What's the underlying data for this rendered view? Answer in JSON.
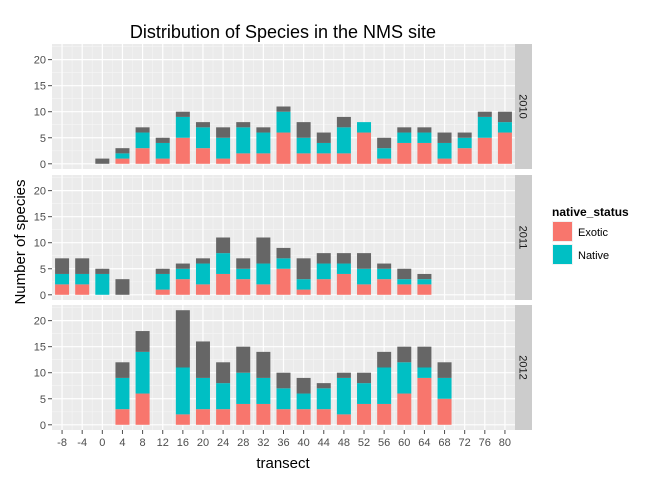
{
  "chart_data": {
    "type": "bar",
    "stacked": true,
    "faceted_by": "year",
    "title": "Distribution of Species in the NMS site",
    "xlabel": "transect",
    "ylabel": "Number of species",
    "ylim": [
      -1,
      23
    ],
    "yticks": [
      0,
      5,
      10,
      15,
      20
    ],
    "xlim": [
      -10,
      82
    ],
    "xticks": [
      -8,
      -4,
      0,
      4,
      8,
      12,
      16,
      20,
      24,
      28,
      32,
      36,
      40,
      44,
      48,
      52,
      56,
      60,
      64,
      68,
      72,
      76,
      80
    ],
    "xtick_labels": [
      "-8",
      "-4",
      "0",
      "4",
      "8",
      "12",
      "16",
      "20",
      "24",
      "28",
      "32",
      "36",
      "40",
      "44",
      "48",
      "52",
      "56",
      "60",
      "64",
      "68",
      "72",
      "76",
      "80"
    ],
    "legend": {
      "title": "native_status",
      "position": "right",
      "entries": [
        {
          "label": "Exotic",
          "color": "#F8766D"
        },
        {
          "label": "Native",
          "color": "#00BFC4"
        }
      ]
    },
    "other_color": "#666666",
    "panel_bg": "#EBEBEB",
    "strip_bg": "#CCCCCC",
    "series_order_bottom_to_top": [
      "Exotic",
      "Native",
      "unlabeled (grey, no legend entry)"
    ],
    "facets": [
      {
        "label": "2010",
        "bars": [
          {
            "x": 0,
            "exotic": 0,
            "native": 0,
            "total": 1
          },
          {
            "x": 4,
            "exotic": 1,
            "native": 1,
            "total": 3
          },
          {
            "x": 8,
            "exotic": 3,
            "native": 3,
            "total": 7
          },
          {
            "x": 12,
            "exotic": 1,
            "native": 3,
            "total": 5
          },
          {
            "x": 16,
            "exotic": 5,
            "native": 4,
            "total": 10
          },
          {
            "x": 20,
            "exotic": 3,
            "native": 4,
            "total": 8
          },
          {
            "x": 24,
            "exotic": 1,
            "native": 4,
            "total": 7
          },
          {
            "x": 28,
            "exotic": 2,
            "native": 5,
            "total": 8
          },
          {
            "x": 32,
            "exotic": 2,
            "native": 4,
            "total": 7
          },
          {
            "x": 36,
            "exotic": 6,
            "native": 4,
            "total": 11
          },
          {
            "x": 40,
            "exotic": 2,
            "native": 3,
            "total": 8
          },
          {
            "x": 44,
            "exotic": 2,
            "native": 2,
            "total": 6
          },
          {
            "x": 48,
            "exotic": 2,
            "native": 5,
            "total": 9
          },
          {
            "x": 52,
            "exotic": 6,
            "native": 2,
            "total": 8
          },
          {
            "x": 56,
            "exotic": 1,
            "native": 2,
            "total": 5
          },
          {
            "x": 60,
            "exotic": 4,
            "native": 2,
            "total": 7
          },
          {
            "x": 64,
            "exotic": 4,
            "native": 2,
            "total": 7
          },
          {
            "x": 68,
            "exotic": 1,
            "native": 3,
            "total": 6
          },
          {
            "x": 72,
            "exotic": 3,
            "native": 2,
            "total": 6
          },
          {
            "x": 76,
            "exotic": 5,
            "native": 4,
            "total": 10
          },
          {
            "x": 80,
            "exotic": 6,
            "native": 2,
            "total": 10
          }
        ]
      },
      {
        "label": "2011",
        "bars": [
          {
            "x": -8,
            "exotic": 2,
            "native": 2,
            "total": 7
          },
          {
            "x": -4,
            "exotic": 2,
            "native": 2,
            "total": 7
          },
          {
            "x": 0,
            "exotic": 0,
            "native": 4,
            "total": 5
          },
          {
            "x": 4,
            "exotic": 0,
            "native": 0,
            "total": 3
          },
          {
            "x": 12,
            "exotic": 1,
            "native": 3,
            "total": 5
          },
          {
            "x": 16,
            "exotic": 3,
            "native": 2,
            "total": 6
          },
          {
            "x": 20,
            "exotic": 2,
            "native": 4,
            "total": 7
          },
          {
            "x": 24,
            "exotic": 4,
            "native": 4,
            "total": 11
          },
          {
            "x": 28,
            "exotic": 3,
            "native": 2,
            "total": 7
          },
          {
            "x": 32,
            "exotic": 2,
            "native": 4,
            "total": 11
          },
          {
            "x": 36,
            "exotic": 5,
            "native": 2,
            "total": 9
          },
          {
            "x": 40,
            "exotic": 1,
            "native": 2,
            "total": 7
          },
          {
            "x": 44,
            "exotic": 3,
            "native": 3,
            "total": 8
          },
          {
            "x": 48,
            "exotic": 4,
            "native": 2,
            "total": 8
          },
          {
            "x": 52,
            "exotic": 2,
            "native": 3,
            "total": 8
          },
          {
            "x": 56,
            "exotic": 3,
            "native": 2,
            "total": 6
          },
          {
            "x": 60,
            "exotic": 2,
            "native": 1,
            "total": 5
          },
          {
            "x": 64,
            "exotic": 2,
            "native": 1,
            "total": 4
          }
        ]
      },
      {
        "label": "2012",
        "bars": [
          {
            "x": 4,
            "exotic": 3,
            "native": 6,
            "total": 12
          },
          {
            "x": 8,
            "exotic": 6,
            "native": 8,
            "total": 18
          },
          {
            "x": 16,
            "exotic": 2,
            "native": 9,
            "total": 22
          },
          {
            "x": 20,
            "exotic": 3,
            "native": 6,
            "total": 16
          },
          {
            "x": 24,
            "exotic": 3,
            "native": 5,
            "total": 12
          },
          {
            "x": 28,
            "exotic": 4,
            "native": 6,
            "total": 15
          },
          {
            "x": 32,
            "exotic": 4,
            "native": 5,
            "total": 14
          },
          {
            "x": 36,
            "exotic": 3,
            "native": 4,
            "total": 10
          },
          {
            "x": 40,
            "exotic": 3,
            "native": 3,
            "total": 9
          },
          {
            "x": 44,
            "exotic": 3,
            "native": 4,
            "total": 8
          },
          {
            "x": 48,
            "exotic": 2,
            "native": 7,
            "total": 10
          },
          {
            "x": 52,
            "exotic": 4,
            "native": 4,
            "total": 10
          },
          {
            "x": 56,
            "exotic": 4,
            "native": 7,
            "total": 14
          },
          {
            "x": 60,
            "exotic": 6,
            "native": 6,
            "total": 15
          },
          {
            "x": 64,
            "exotic": 9,
            "native": 2,
            "total": 15
          },
          {
            "x": 68,
            "exotic": 5,
            "native": 4,
            "total": 12
          }
        ]
      }
    ]
  }
}
